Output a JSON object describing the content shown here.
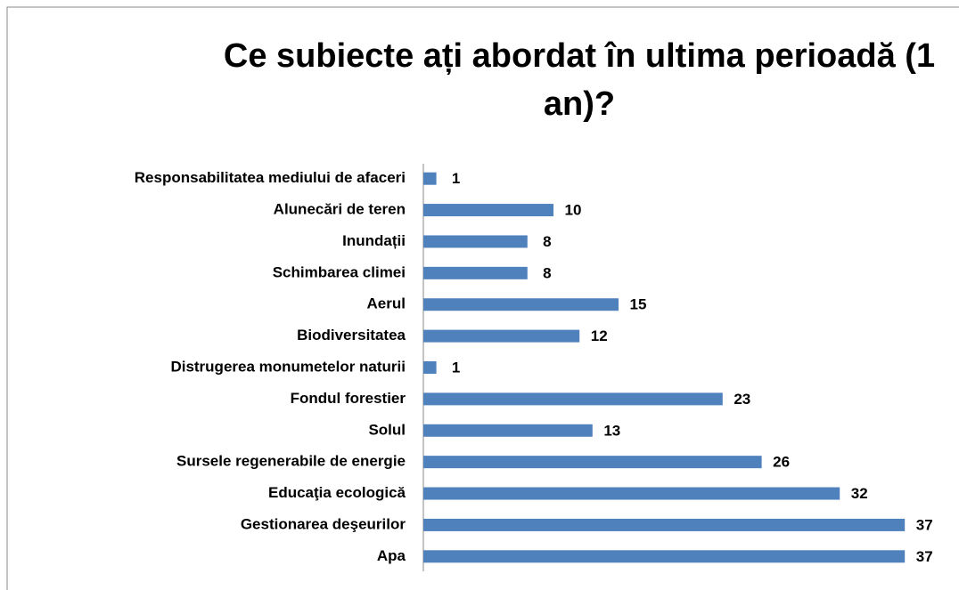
{
  "chart_data": {
    "type": "bar",
    "orientation": "horizontal",
    "title": "Ce subiecte ați abordat în ultima perioadă (1 an)?",
    "categories": [
      "Responsabilitatea mediului de afaceri",
      "Alunecări de teren",
      "Inundații",
      "Schimbarea climei",
      "Aerul",
      "Biodiversitatea",
      "Distrugerea monumetelor naturii",
      "Fondul forestier",
      "Solul",
      "Sursele regenerabile de energie",
      "Educaţia ecologică",
      "Gestionarea deşeurilor",
      "Apa"
    ],
    "values": [
      1,
      10,
      8,
      8,
      15,
      12,
      1,
      23,
      13,
      26,
      32,
      37,
      37
    ],
    "color": "#4f81bd",
    "xlim": [
      0,
      40
    ]
  }
}
